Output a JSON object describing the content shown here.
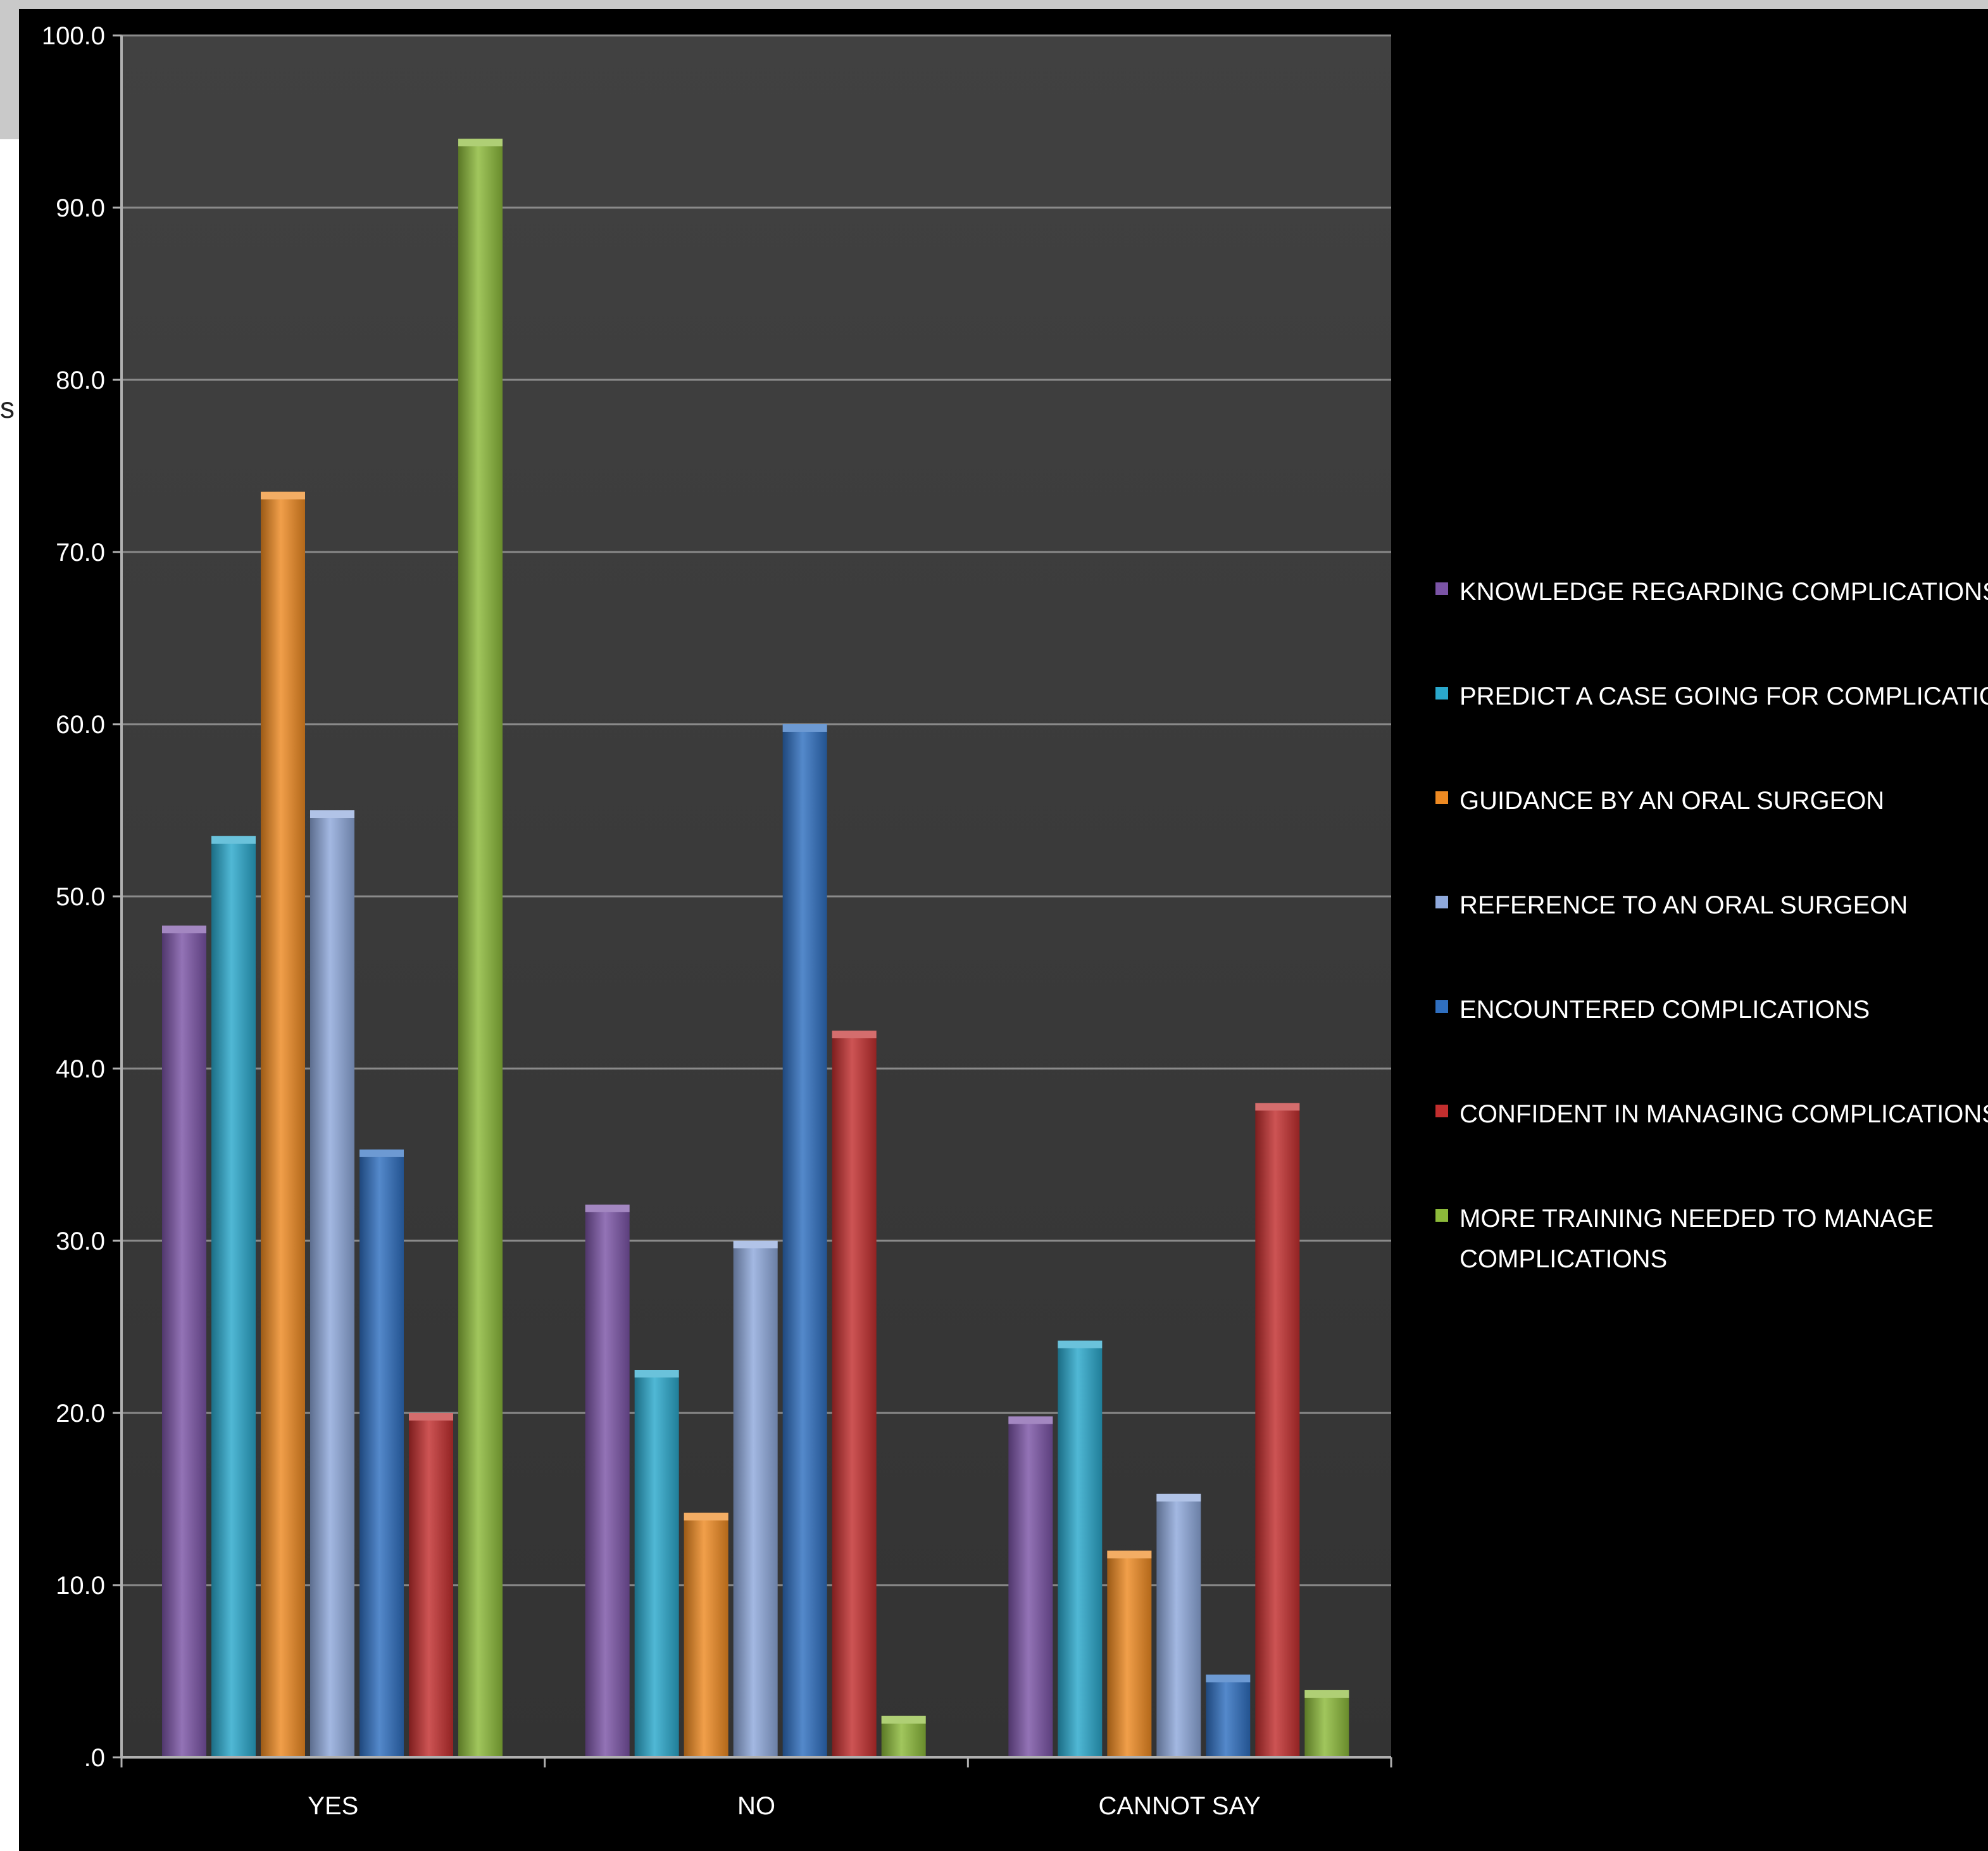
{
  "chart_data": {
    "type": "bar",
    "title": "",
    "xlabel": "",
    "ylabel": "",
    "categories": [
      "YES",
      "NO",
      "CANNOT SAY"
    ],
    "ylim": [
      0,
      100
    ],
    "yticks": [
      ".0",
      "10.0",
      "20.0",
      "30.0",
      "40.0",
      "50.0",
      "60.0",
      "70.0",
      "80.0",
      "90.0",
      "100.0"
    ],
    "grid": true,
    "legend_position": "right",
    "series": [
      {
        "name": "KNOWLEDGE REGARDING COMPLICATIONS",
        "color": "#7b54a6",
        "values": [
          48.3,
          32.1,
          19.8
        ]
      },
      {
        "name": "PREDICT A CASE GOING FOR COMPLICATIONS",
        "color": "#2aa8cc",
        "values": [
          53.5,
          22.5,
          24.2
        ]
      },
      {
        "name": "GUIDANCE BY AN ORAL SURGEON",
        "color": "#ee8a22",
        "values": [
          73.5,
          14.2,
          12.0
        ]
      },
      {
        "name": "REFERENCE TO AN ORAL SURGEON",
        "color": "#8fa9dc",
        "values": [
          55.0,
          30.0,
          15.3
        ]
      },
      {
        "name": "ENCOUNTERED COMPLICATIONS",
        "color": "#2f6fc0",
        "values": [
          35.3,
          60.0,
          4.8
        ]
      },
      {
        "name": "CONFIDENT IN MANAGING COMPLICATIONS",
        "color": "#c22e2e",
        "values": [
          20.0,
          42.2,
          38.0
        ]
      },
      {
        "name": "MORE TRAINING NEEDED TO MANAGE COMPLICATIONS",
        "color": "#8cba3a",
        "values": [
          94.0,
          2.4,
          3.9
        ]
      }
    ]
  },
  "partial_side_text": "s"
}
